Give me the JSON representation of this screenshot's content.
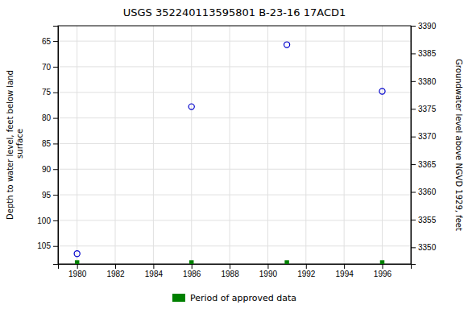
{
  "chart_data": {
    "type": "scatter",
    "title": "USGS 352240113595801 B-23-16 17ACD1",
    "series": [
      {
        "x": [
          1980,
          1986,
          1991,
          1996
        ],
        "values": [
          106.5,
          77.8,
          65.7,
          74.8
        ],
        "color": "#0000cc",
        "marker": "circle-open"
      },
      {
        "name": "Period of approved data",
        "x": [
          1980,
          1986,
          1991,
          1996
        ],
        "values": [
          108.2,
          108.2,
          108.2,
          108.2
        ],
        "color": "#008000",
        "marker": "square"
      }
    ],
    "xlim": [
      1979.0,
      1997.5
    ],
    "xticks": [
      1980,
      1982,
      1984,
      1986,
      1988,
      1990,
      1992,
      1994,
      1996
    ],
    "ylim": [
      108.5,
      62.0
    ],
    "yticks": [
      65,
      70,
      75,
      80,
      85,
      90,
      95,
      100,
      105
    ],
    "y2lim": [
      3347,
      3390
    ],
    "y2ticks": [
      3350,
      3355,
      3360,
      3365,
      3370,
      3375,
      3380,
      3385,
      3390
    ],
    "ylabel": "Depth to water level, feet below land\n surface",
    "y2label": "Groundwater level above NGVD 1929, feet",
    "grid": true,
    "legend": "bottom"
  }
}
